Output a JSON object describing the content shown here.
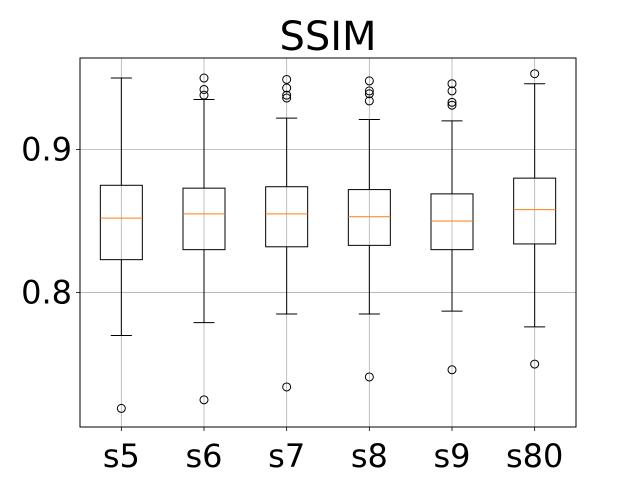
{
  "chart_data": {
    "type": "box",
    "title": "SSIM",
    "xlabel": "",
    "ylabel": "",
    "categories": [
      "s5",
      "s6",
      "s7",
      "s8",
      "s9",
      "s80"
    ],
    "yticks": [
      0.8,
      0.9
    ],
    "ytick_labels": [
      "0.8",
      "0.9"
    ],
    "ylim": [
      0.706,
      0.964
    ],
    "grid": true,
    "boxes": [
      {
        "label": "s5",
        "whisker_low": 0.77,
        "q1": 0.823,
        "median": 0.852,
        "q3": 0.875,
        "whisker_high": 0.95,
        "outliers": [
          0.719
        ]
      },
      {
        "label": "s6",
        "whisker_low": 0.779,
        "q1": 0.83,
        "median": 0.855,
        "q3": 0.873,
        "whisker_high": 0.935,
        "outliers": [
          0.725,
          0.938,
          0.942,
          0.95
        ]
      },
      {
        "label": "s7",
        "whisker_low": 0.785,
        "q1": 0.832,
        "median": 0.855,
        "q3": 0.874,
        "whisker_high": 0.922,
        "outliers": [
          0.734,
          0.936,
          0.938,
          0.943,
          0.949
        ]
      },
      {
        "label": "s8",
        "whisker_low": 0.785,
        "q1": 0.833,
        "median": 0.853,
        "q3": 0.872,
        "whisker_high": 0.921,
        "outliers": [
          0.741,
          0.934,
          0.939,
          0.941,
          0.948
        ]
      },
      {
        "label": "s9",
        "whisker_low": 0.787,
        "q1": 0.83,
        "median": 0.85,
        "q3": 0.869,
        "whisker_high": 0.92,
        "outliers": [
          0.746,
          0.931,
          0.933,
          0.941,
          0.946
        ]
      },
      {
        "label": "s80",
        "whisker_low": 0.776,
        "q1": 0.834,
        "median": 0.858,
        "q3": 0.88,
        "whisker_high": 0.946,
        "outliers": [
          0.75,
          0.953
        ]
      }
    ],
    "colors": {
      "box": "#000000",
      "median": "#ff7f0e",
      "grid": "#b0b0b0",
      "outlier": "#000000"
    }
  }
}
